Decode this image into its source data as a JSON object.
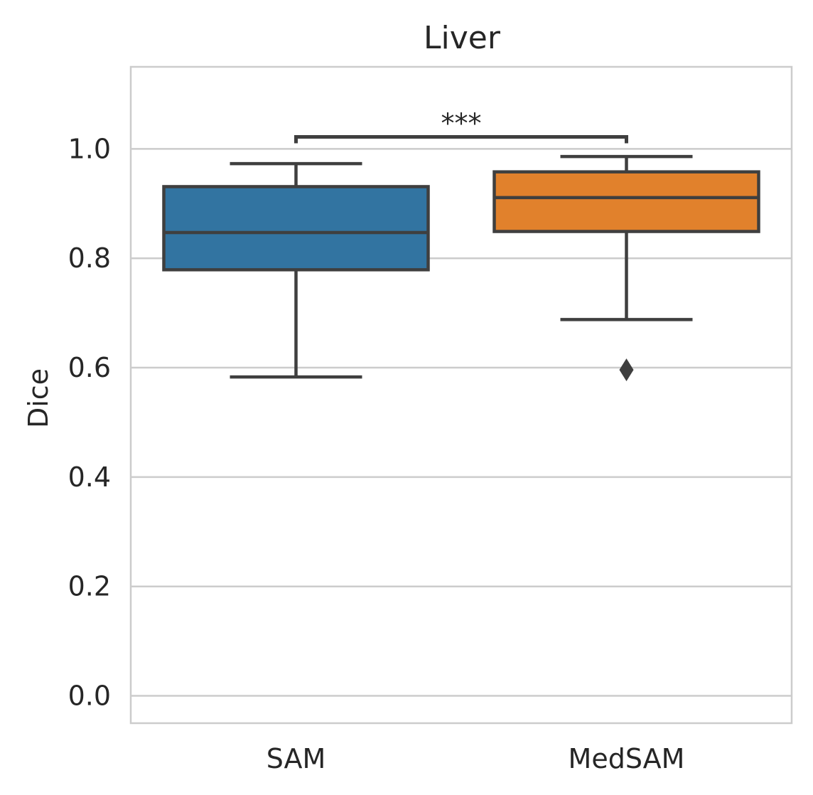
{
  "chart_data": {
    "type": "box",
    "title": "Liver",
    "xlabel": "",
    "ylabel": "Dice",
    "ylim": [
      -0.05,
      1.15
    ],
    "yticks": [
      0.0,
      0.2,
      0.4,
      0.6,
      0.8,
      1.0
    ],
    "ytick_labels": [
      "0.0",
      "0.2",
      "0.4",
      "0.6",
      "0.8",
      "1.0"
    ],
    "grid": true,
    "categories": [
      "SAM",
      "MedSAM"
    ],
    "boxes": [
      {
        "category": "SAM",
        "color": "#3274a1",
        "whisker_low": 0.583,
        "q1": 0.779,
        "median": 0.847,
        "q3": 0.931,
        "whisker_high": 0.973,
        "outliers": []
      },
      {
        "category": "MedSAM",
        "color": "#e1812c",
        "whisker_low": 0.688,
        "q1": 0.849,
        "median": 0.911,
        "q3": 0.958,
        "whisker_high": 0.986,
        "outliers": [
          0.596
        ]
      }
    ],
    "significance": {
      "between": [
        "SAM",
        "MedSAM"
      ],
      "label": "***",
      "y": 1.022
    }
  }
}
